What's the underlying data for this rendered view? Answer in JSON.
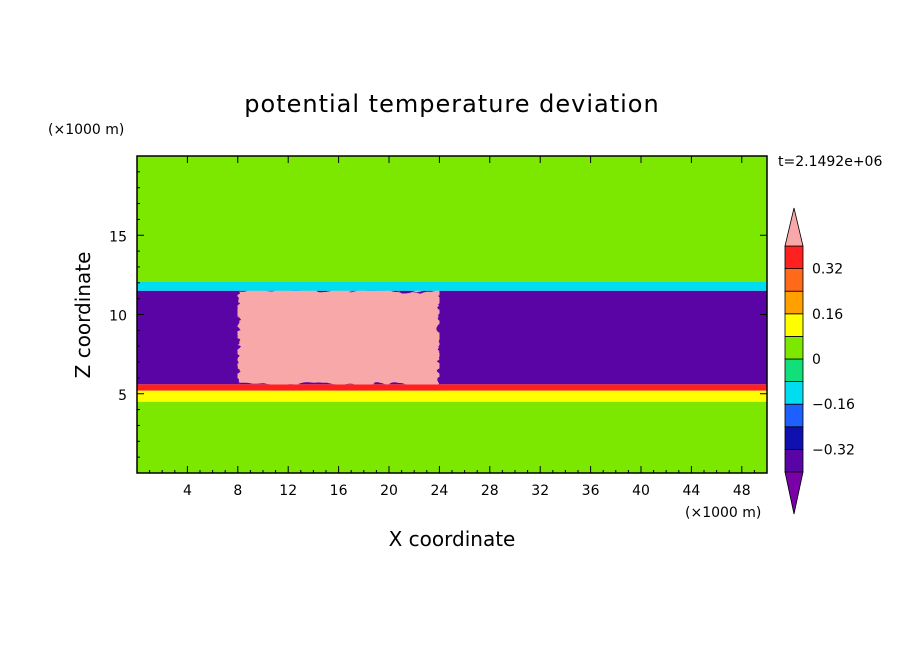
{
  "chart_data": {
    "type": "heatmap",
    "title": "potential temperature deviation",
    "xlabel": "X coordinate",
    "ylabel": "Z coordinate",
    "x_unit": "(×1000 m)",
    "y_unit": "(×1000 m)",
    "time_label": "t=2.1492e+06",
    "xlim": [
      0,
      50
    ],
    "ylim": [
      0,
      20
    ],
    "x_ticks": [
      4,
      8,
      12,
      16,
      20,
      24,
      28,
      32,
      36,
      40,
      44,
      48
    ],
    "y_ticks": [
      5,
      10,
      15
    ],
    "colorbar": {
      "levels": [
        -0.4,
        -0.32,
        -0.24,
        -0.16,
        -0.08,
        0,
        0.08,
        0.16,
        0.24,
        0.32,
        0.4
      ],
      "labels": [
        "0.32",
        "0.16",
        "0",
        "−0.16",
        "−0.32"
      ],
      "label_values": [
        0.32,
        0.16,
        0,
        -0.16,
        -0.32
      ],
      "colors": [
        "#7a00a8",
        "#5a04a6",
        "#1010b0",
        "#1e60ff",
        "#00ddf0",
        "#11e07a",
        "#7ce800",
        "#ffff00",
        "#ffa000",
        "#ff6a1a",
        "#ff2020"
      ],
      "over_color": "#f8a8a8",
      "under_color": "#7a00a8"
    },
    "regions": [
      {
        "x": [
          0,
          50
        ],
        "z": [
          0,
          4.5
        ],
        "value": 0.04
      },
      {
        "x": [
          0,
          50
        ],
        "z": [
          4.5,
          5.2
        ],
        "value": 0.12
      },
      {
        "x": [
          0,
          50
        ],
        "z": [
          5.2,
          5.6
        ],
        "value": 0.36
      },
      {
        "x": [
          0,
          50
        ],
        "z": [
          5.6,
          11.5
        ],
        "value": -0.36
      },
      {
        "x": [
          8,
          24
        ],
        "z": [
          5.6,
          11.5
        ],
        "value": 0.45
      },
      {
        "x": [
          0,
          50
        ],
        "z": [
          11.5,
          12.1
        ],
        "value": -0.12
      },
      {
        "x": [
          0,
          50
        ],
        "z": [
          12.1,
          20
        ],
        "value": 0.04
      }
    ]
  }
}
